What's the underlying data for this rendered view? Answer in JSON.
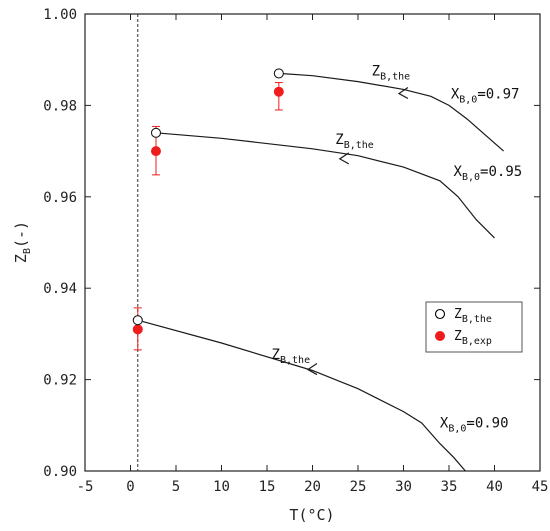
{
  "chart_data": {
    "type": "line",
    "xlabel": "T(°C)",
    "ylabel_main": "Z",
    "ylabel_sub": "B",
    "ylabel_suffix": "(-)",
    "xlim": [
      -5,
      45
    ],
    "ylim": [
      0.9,
      1.0
    ],
    "xticks": [
      -5,
      0,
      5,
      10,
      15,
      20,
      25,
      30,
      35,
      40,
      45
    ],
    "yticks": [
      0.9,
      0.92,
      0.94,
      0.96,
      0.98,
      1.0
    ],
    "ytick_labels": [
      "0.90",
      "0.92",
      "0.94",
      "0.96",
      "0.98",
      "1.00"
    ],
    "vline_x": 0.8,
    "series": [
      {
        "name": "X_B,0=0.97",
        "curve": [
          [
            16.3,
            0.987
          ],
          [
            20,
            0.9865
          ],
          [
            25,
            0.9852
          ],
          [
            30,
            0.9835
          ],
          [
            33,
            0.982
          ],
          [
            35,
            0.98
          ],
          [
            37,
            0.977
          ],
          [
            39,
            0.9735
          ],
          [
            41,
            0.97
          ]
        ],
        "arrow_at": [
          29.5,
          0.9826
        ],
        "the_point": [
          16.3,
          0.987
        ],
        "exp_point": [
          16.3,
          0.983
        ],
        "exp_error": [
          0.979,
          0.985
        ]
      },
      {
        "name": "X_B,0=0.95",
        "curve": [
          [
            2.8,
            0.974
          ],
          [
            10,
            0.9728
          ],
          [
            20,
            0.9705
          ],
          [
            25,
            0.969
          ],
          [
            30,
            0.9665
          ],
          [
            34,
            0.9635
          ],
          [
            36,
            0.96
          ],
          [
            38,
            0.955
          ],
          [
            40,
            0.951
          ]
        ],
        "arrow_at": [
          23,
          0.9683
        ],
        "the_point": [
          2.8,
          0.974
        ],
        "exp_point": [
          2.8,
          0.97
        ],
        "exp_error": [
          0.9648,
          0.9754
        ]
      },
      {
        "name": "X_B,0=0.90",
        "curve": [
          [
            0.8,
            0.933
          ],
          [
            10,
            0.928
          ],
          [
            20,
            0.922
          ],
          [
            25,
            0.918
          ],
          [
            30,
            0.913
          ],
          [
            32,
            0.9105
          ],
          [
            34,
            0.906
          ],
          [
            35.5,
            0.903
          ],
          [
            36.8,
            0.9
          ]
        ],
        "arrow_at": [
          19.5,
          0.9222
        ],
        "the_point": [
          0.8,
          0.933
        ],
        "exp_point": [
          0.8,
          0.931
        ],
        "exp_error": [
          0.9265,
          0.9357
        ]
      }
    ],
    "annotations": [
      {
        "main": "Z",
        "sub": "B,the",
        "suffix": "",
        "x": 26.5,
        "y": 0.9865
      },
      {
        "main": "X",
        "sub": "B,0",
        "suffix": "=0.97",
        "x": 35.2,
        "y": 0.9815
      },
      {
        "main": "Z",
        "sub": "B,the",
        "suffix": "",
        "x": 22.5,
        "y": 0.9715
      },
      {
        "main": "X",
        "sub": "B,0",
        "suffix": "=0.95",
        "x": 35.5,
        "y": 0.9645
      },
      {
        "main": "Z",
        "sub": "B,the",
        "suffix": "",
        "x": 15.5,
        "y": 0.9245
      },
      {
        "main": "X",
        "sub": "B,0",
        "suffix": "=0.90",
        "x": 34,
        "y": 0.9095
      }
    ],
    "legend": {
      "position": "right",
      "entries": [
        {
          "main": "Z",
          "sub": "B,the",
          "marker": "open-circle",
          "color": "#000000"
        },
        {
          "main": "Z",
          "sub": "B,exp",
          "marker": "filled-circle",
          "color": "#ee1c1c"
        }
      ]
    },
    "colors": {
      "curve": "#1a1a1a",
      "experimental": "#ee1c1c",
      "theoretical_marker": "#1a1a1a"
    }
  }
}
